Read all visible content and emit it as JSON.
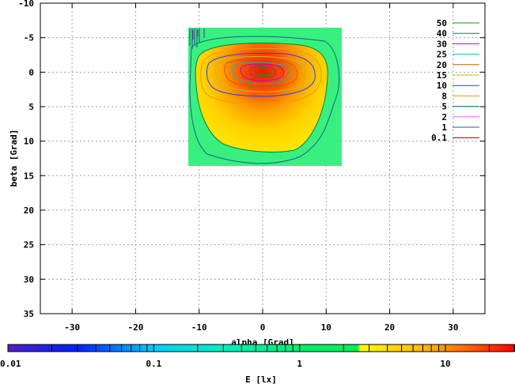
{
  "chart_data": {
    "type": "heatmap",
    "xlabel": "alpha [Grad]",
    "ylabel": "beta [Grad]",
    "xlim": [
      -35,
      35
    ],
    "ylim": [
      -10,
      35
    ],
    "y_inverted": true,
    "x_ticks": [
      -30,
      -20,
      -10,
      0,
      10,
      20,
      30
    ],
    "y_ticks": [
      -10,
      -5,
      0,
      5,
      10,
      15,
      20,
      25,
      30,
      35
    ],
    "grid": true,
    "data_extent": {
      "x": [
        -11.5,
        12.5
      ],
      "y": [
        -6.5,
        13.5
      ]
    },
    "peak": {
      "x": 0,
      "y": 0,
      "value": 50
    },
    "contour_levels": [
      50,
      40,
      30,
      25,
      20,
      15,
      10,
      8,
      5,
      2,
      1,
      0.1
    ],
    "legend_placement": "top-right",
    "legend": [
      {
        "label": "50",
        "color": "#00a000"
      },
      {
        "label": "40",
        "color": "#008060"
      },
      {
        "label": "30",
        "color": "#c000c0"
      },
      {
        "label": "25",
        "color": "#00c0c0"
      },
      {
        "label": "20",
        "color": "#c06000"
      },
      {
        "label": "15",
        "color": "#c0c000"
      },
      {
        "label": "10",
        "color": "#2040ff"
      },
      {
        "label": "8",
        "color": "#e0a000"
      },
      {
        "label": "5",
        "color": "#008040"
      },
      {
        "label": "2",
        "color": "#ff60ff"
      },
      {
        "label": "1",
        "color": "#206080"
      },
      {
        "label": "0.1",
        "color": "#800000"
      }
    ],
    "colorbar": {
      "label": "E [lx]",
      "scale": "log",
      "range": [
        0.01,
        30
      ],
      "tick_labels": [
        "0.01",
        "0.1",
        "1",
        "10"
      ],
      "tick_values": [
        0.01,
        0.1,
        1,
        10
      ],
      "stops": [
        {
          "value": 0.01,
          "color": "#5020c0"
        },
        {
          "value": 0.03,
          "color": "#0020ff"
        },
        {
          "value": 0.1,
          "color": "#00d0ff"
        },
        {
          "value": 0.3,
          "color": "#00f0c0"
        },
        {
          "value": 1,
          "color": "#00f070"
        },
        {
          "value": 2.5,
          "color": "#00f050"
        },
        {
          "value": 2.6,
          "color": "#ffff00"
        },
        {
          "value": 8,
          "color": "#ffb000"
        },
        {
          "value": 30,
          "color": "#ff0000"
        }
      ]
    }
  }
}
